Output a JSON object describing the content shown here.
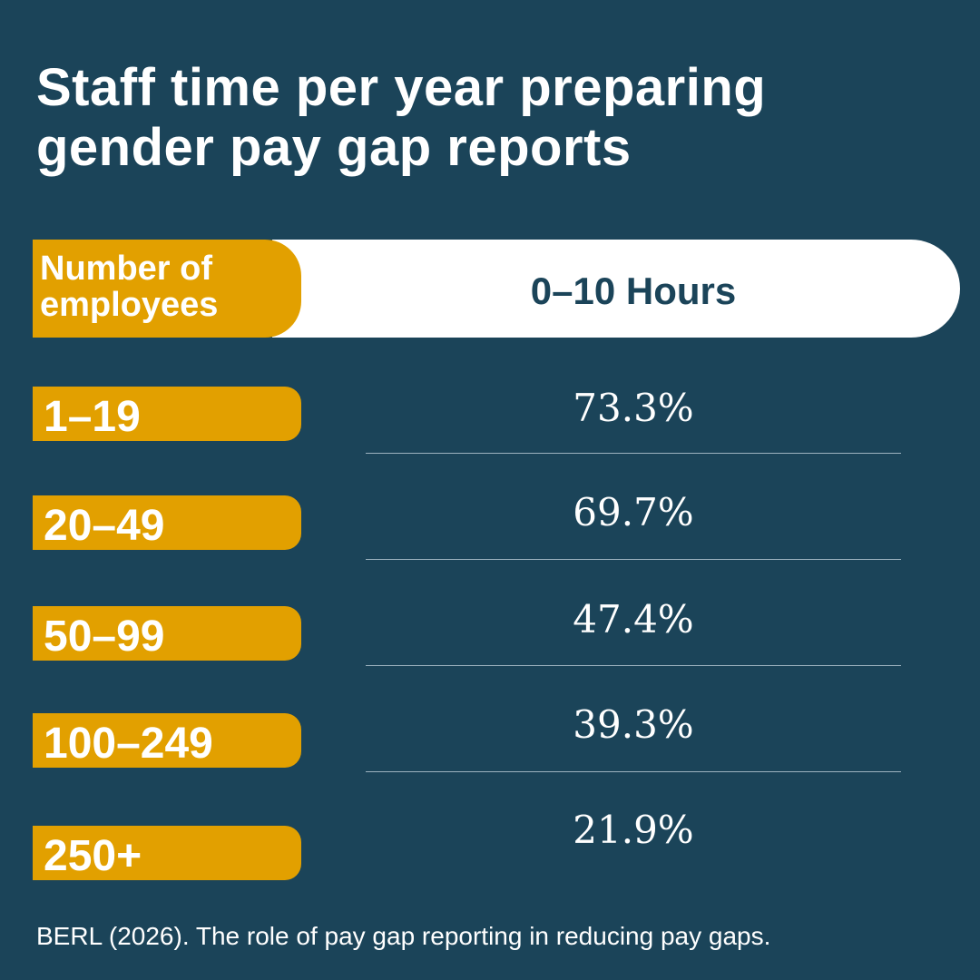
{
  "title": {
    "line1": "Staff time per year preparing",
    "line2": "gender pay gap reports"
  },
  "chart_data": {
    "type": "table",
    "row_header": {
      "line1": "Number of",
      "line2": "employees"
    },
    "column_header": "0–10 Hours",
    "rows": [
      {
        "label": "1–19",
        "display": "73.3%",
        "value": 73.3
      },
      {
        "label": "20–49",
        "display": "69.7%",
        "value": 69.7
      },
      {
        "label": "50–99",
        "display": "47.4%",
        "value": 47.4
      },
      {
        "label": "100–249",
        "display": "39.3%",
        "value": 39.3
      },
      {
        "label": "250+",
        "display": "21.9%",
        "value": 21.9
      }
    ]
  },
  "source": "BERL (2026). The role of pay gap reporting in reducing pay gaps.",
  "colors": {
    "background": "#1b4459",
    "accent": "#e2a000",
    "header_fill": "#ffffff",
    "text": "#ffffff"
  }
}
